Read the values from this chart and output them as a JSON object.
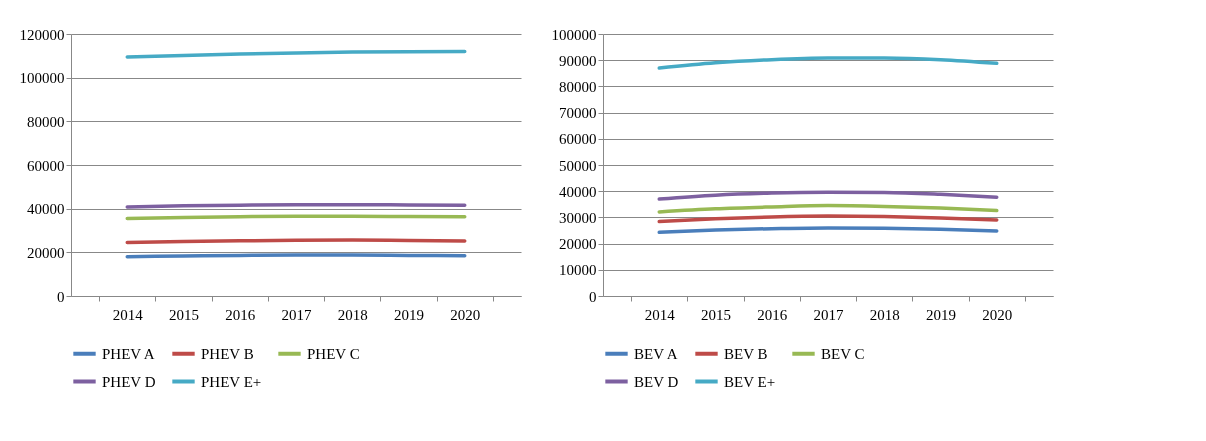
{
  "chart_data": [
    {
      "type": "line",
      "categories": [
        "2014",
        "2015",
        "2016",
        "2017",
        "2018",
        "2019",
        "2020"
      ],
      "ylim": [
        0,
        120000
      ],
      "yticks": [
        0,
        20000,
        40000,
        60000,
        80000,
        100000,
        120000
      ],
      "grid": "y",
      "legend": "bottom",
      "series": [
        {
          "name": "PHEV A",
          "color": "#4a7ebb",
          "values": [
            18000,
            18300,
            18600,
            18800,
            18800,
            18600,
            18400
          ]
        },
        {
          "name": "PHEV B",
          "color": "#be4b48",
          "values": [
            24500,
            25000,
            25300,
            25500,
            25600,
            25400,
            25200
          ]
        },
        {
          "name": "PHEV C",
          "color": "#98b954",
          "values": [
            35500,
            36000,
            36300,
            36500,
            36500,
            36400,
            36300
          ]
        },
        {
          "name": "PHEV D",
          "color": "#7d60a0",
          "values": [
            40800,
            41300,
            41600,
            41800,
            41800,
            41700,
            41600
          ]
        },
        {
          "name": "PHEV E+",
          "color": "#46aac5",
          "values": [
            109500,
            110200,
            110800,
            111300,
            111700,
            111900,
            112000
          ]
        }
      ]
    },
    {
      "type": "line",
      "categories": [
        "2014",
        "2015",
        "2016",
        "2017",
        "2018",
        "2019",
        "2020"
      ],
      "ylim": [
        0,
        100000
      ],
      "yticks": [
        0,
        10000,
        20000,
        30000,
        40000,
        50000,
        60000,
        70000,
        80000,
        90000,
        100000
      ],
      "grid": "y",
      "legend": "bottom",
      "series": [
        {
          "name": "BEV A",
          "color": "#4a7ebb",
          "values": [
            24300,
            25200,
            25700,
            26000,
            25900,
            25500,
            24800
          ]
        },
        {
          "name": "BEV B",
          "color": "#be4b48",
          "values": [
            28400,
            29500,
            30200,
            30500,
            30300,
            29800,
            29000
          ]
        },
        {
          "name": "BEV C",
          "color": "#98b954",
          "values": [
            32100,
            33300,
            34000,
            34500,
            34200,
            33600,
            32600
          ]
        },
        {
          "name": "BEV D",
          "color": "#7d60a0",
          "values": [
            37000,
            38500,
            39300,
            39600,
            39500,
            38800,
            37700
          ]
        },
        {
          "name": "BEV E+",
          "color": "#46aac5",
          "values": [
            87000,
            89000,
            90200,
            90800,
            90800,
            90200,
            88800
          ]
        }
      ]
    }
  ]
}
